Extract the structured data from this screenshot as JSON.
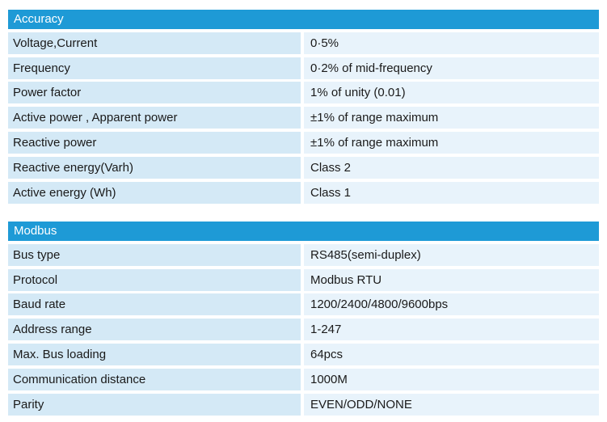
{
  "sections": [
    {
      "title": "Accuracy",
      "rows": [
        {
          "label": "Voltage,Current",
          "value": "0·5%"
        },
        {
          "label": "Frequency",
          "value": "0·2% of mid-frequency"
        },
        {
          "label": "Power factor",
          "value": "1% of unity (0.01)"
        },
        {
          "label": "Active power , Apparent power",
          "value": "±1% of range maximum"
        },
        {
          "label": "Reactive power",
          "value": "±1% of range maximum"
        },
        {
          "label": "Reactive energy(Varh)",
          "value": "Class 2"
        },
        {
          "label": "Active energy (Wh)",
          "value": "Class 1"
        }
      ]
    },
    {
      "title": "Modbus",
      "rows": [
        {
          "label": "Bus type",
          "value": "RS485(semi-duplex)"
        },
        {
          "label": "Protocol",
          "value": "Modbus RTU"
        },
        {
          "label": "Baud rate",
          "value": "1200/2400/4800/9600bps"
        },
        {
          "label": "Address range",
          "value": "1-247"
        },
        {
          "label": "Max. Bus loading",
          "value": "64pcs"
        },
        {
          "label": "Communication distance",
          "value": "1000M"
        },
        {
          "label": "Parity",
          "value": "EVEN/ODD/NONE"
        }
      ]
    }
  ]
}
